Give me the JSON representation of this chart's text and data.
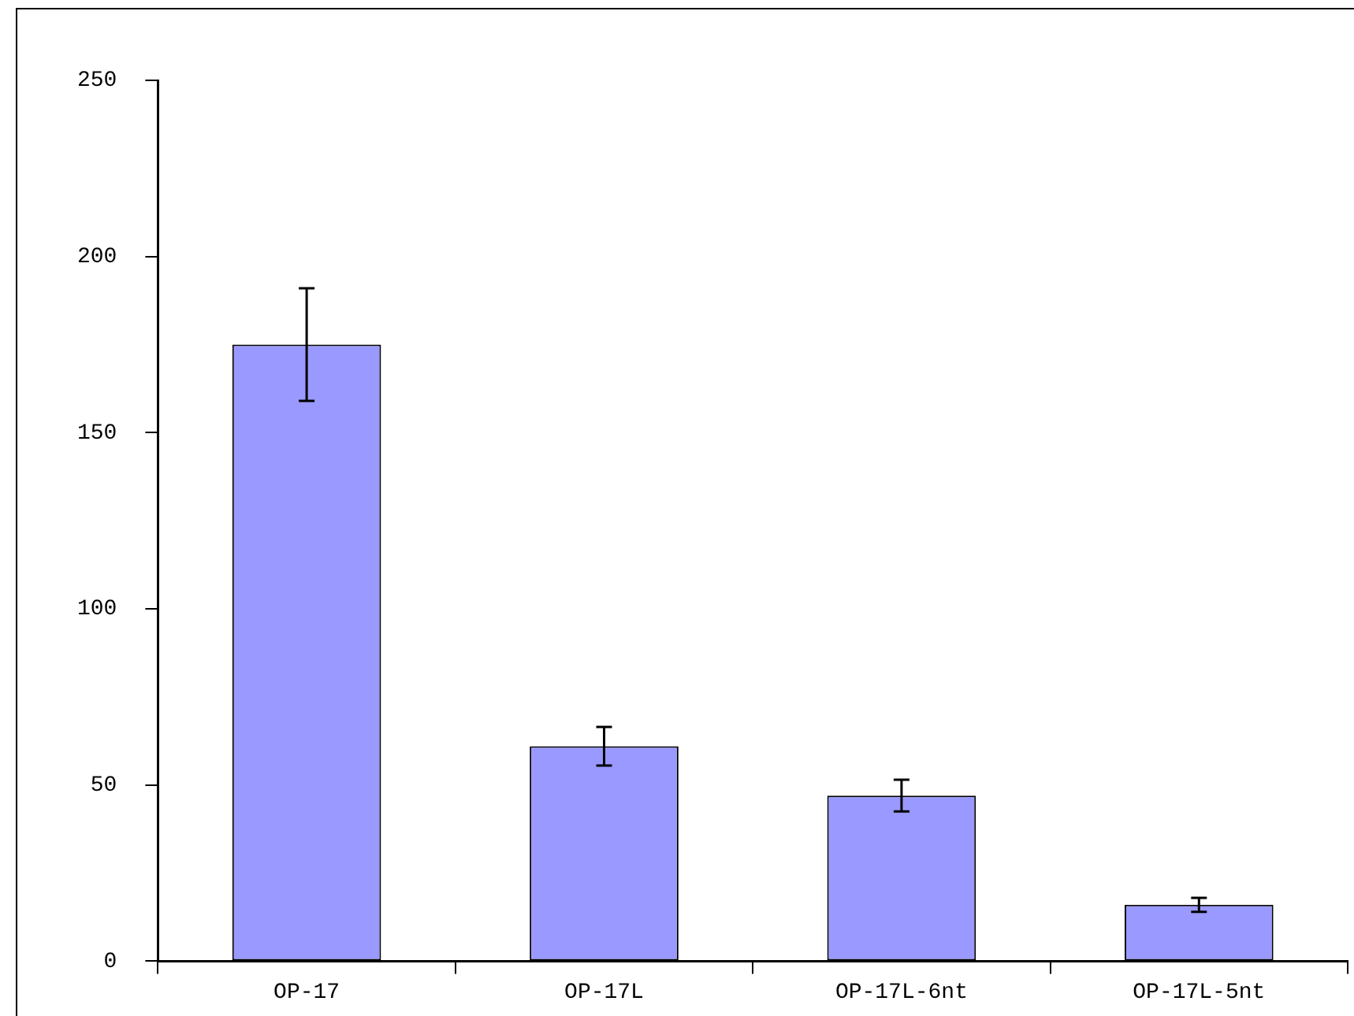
{
  "chart_data": {
    "type": "bar",
    "categories": [
      "OP-17",
      "OP-17L",
      "OP-17L-6nt",
      "OP-17L-5nt"
    ],
    "values": [
      175,
      61,
      47,
      16
    ],
    "errors": [
      16,
      5.5,
      4.5,
      2
    ],
    "color": "#9999ff",
    "ylim": [
      0,
      250
    ],
    "yticks": [
      0,
      50,
      100,
      150,
      200,
      250
    ],
    "grid": false
  }
}
